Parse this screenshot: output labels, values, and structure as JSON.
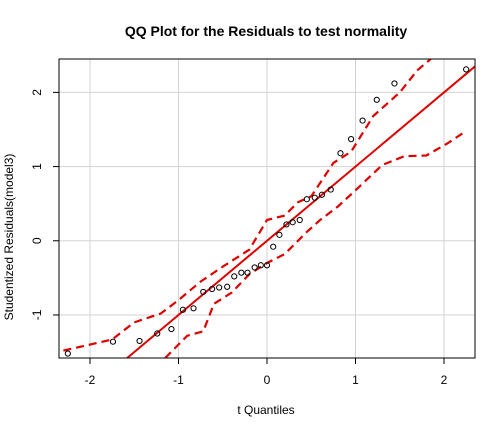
{
  "chart_data": {
    "type": "scatter",
    "title": "QQ Plot for the Residuals to test normality",
    "xlabel": "t Quantiles",
    "ylabel": "Studentized Residuals(model3)",
    "xlim": [
      -2.35,
      2.35
    ],
    "ylim": [
      -1.58,
      2.45
    ],
    "x_ticks": [
      -2,
      -1,
      0,
      1,
      2
    ],
    "y_ticks": [
      -1,
      0,
      1,
      2
    ],
    "grid": true,
    "colors": {
      "points": "#000000",
      "reference": "#dd0000",
      "envelope": "#dd0000",
      "grid": "#d3d3d3",
      "frame": "#000000"
    },
    "points": [
      [
        -2.25,
        -1.52
      ],
      [
        -1.74,
        -1.36
      ],
      [
        -1.44,
        -1.35
      ],
      [
        -1.24,
        -1.25
      ],
      [
        -1.08,
        -1.19
      ],
      [
        -0.95,
        -0.93
      ],
      [
        -0.83,
        -0.91
      ],
      [
        -0.72,
        -0.69
      ],
      [
        -0.62,
        -0.65
      ],
      [
        -0.54,
        -0.63
      ],
      [
        -0.45,
        -0.62
      ],
      [
        -0.37,
        -0.48
      ],
      [
        -0.29,
        -0.43
      ],
      [
        -0.22,
        -0.43
      ],
      [
        -0.14,
        -0.36
      ],
      [
        -0.07,
        -0.33
      ],
      [
        0.0,
        -0.33
      ],
      [
        0.07,
        -0.08
      ],
      [
        0.14,
        0.08
      ],
      [
        0.22,
        0.22
      ],
      [
        0.29,
        0.25
      ],
      [
        0.37,
        0.28
      ],
      [
        0.45,
        0.56
      ],
      [
        0.54,
        0.58
      ],
      [
        0.62,
        0.62
      ],
      [
        0.72,
        0.69
      ],
      [
        0.83,
        1.18
      ],
      [
        0.95,
        1.37
      ],
      [
        1.08,
        1.62
      ],
      [
        1.24,
        1.9
      ],
      [
        1.44,
        2.12
      ],
      [
        2.25,
        2.31
      ]
    ],
    "reference_line": {
      "intercept": 0.0,
      "slope": 1.0
    },
    "envelope_upper": [
      [
        -2.3,
        -1.48
      ],
      [
        -2.0,
        -1.4
      ],
      [
        -1.75,
        -1.33
      ],
      [
        -1.5,
        -1.1
      ],
      [
        -1.2,
        -0.98
      ],
      [
        -1.0,
        -0.8
      ],
      [
        -0.75,
        -0.55
      ],
      [
        -0.5,
        -0.35
      ],
      [
        -0.2,
        -0.12
      ],
      [
        0.0,
        0.28
      ],
      [
        0.2,
        0.34
      ],
      [
        0.35,
        0.52
      ],
      [
        0.5,
        0.6
      ],
      [
        0.75,
        1.05
      ],
      [
        0.95,
        1.2
      ],
      [
        1.2,
        1.68
      ],
      [
        1.5,
        2.0
      ],
      [
        1.7,
        2.3
      ],
      [
        1.85,
        2.45
      ]
    ],
    "envelope_lower": [
      [
        -1.15,
        -1.58
      ],
      [
        -0.9,
        -1.28
      ],
      [
        -0.72,
        -1.22
      ],
      [
        -0.6,
        -0.85
      ],
      [
        -0.4,
        -0.7
      ],
      [
        -0.2,
        -0.45
      ],
      [
        0.0,
        -0.3
      ],
      [
        0.2,
        -0.18
      ],
      [
        0.45,
        0.12
      ],
      [
        0.6,
        0.28
      ],
      [
        0.8,
        0.46
      ],
      [
        1.0,
        0.68
      ],
      [
        1.3,
        1.02
      ],
      [
        1.55,
        1.14
      ],
      [
        1.8,
        1.15
      ],
      [
        2.05,
        1.32
      ],
      [
        2.25,
        1.48
      ]
    ]
  }
}
